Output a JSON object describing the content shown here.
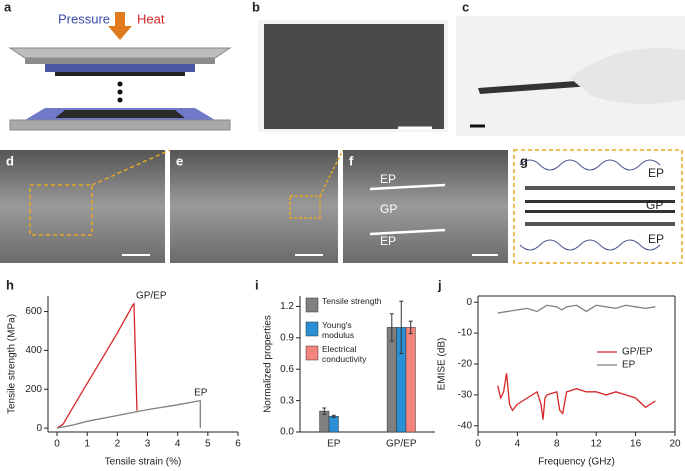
{
  "panel_labels": [
    "a",
    "b",
    "c",
    "d",
    "e",
    "f",
    "g",
    "h",
    "i",
    "j"
  ],
  "diagram_a": {
    "pressure": "Pressure",
    "heat": "Heat"
  },
  "sem_f": [
    "EP",
    "GP",
    "EP"
  ],
  "schematic_g": [
    "EP",
    "GP",
    "EP"
  ],
  "chart_data": [
    {
      "type": "line",
      "xlabel": "Tensile strain (%)",
      "ylabel": "Tensile strength (MPa)",
      "xlim": [
        -0.3,
        6
      ],
      "ylim": [
        -20,
        680
      ],
      "xticks": [
        0,
        1,
        2,
        3,
        4,
        5,
        6
      ],
      "yticks": [
        0,
        200,
        400,
        600
      ],
      "series": [
        {
          "name": "GP/EP",
          "color": "#d62728",
          "x": [
            0,
            0.2,
            0.5,
            1,
            1.5,
            2,
            2.5,
            2.55,
            2.65
          ],
          "values": [
            0,
            20,
            100,
            230,
            360,
            490,
            630,
            640,
            90
          ]
        },
        {
          "name": "EP",
          "color": "#808080",
          "x": [
            0,
            0.5,
            1,
            2,
            3,
            4,
            4.7,
            4.75,
            4.75
          ],
          "values": [
            0,
            15,
            35,
            65,
            95,
            120,
            140,
            140,
            0
          ]
        }
      ]
    },
    {
      "type": "bar",
      "ylabel": "Normalized properties",
      "categories": [
        "EP",
        "GP/EP"
      ],
      "ylim": [
        0,
        1.3
      ],
      "yticks": [
        {
          "value": 0,
          "label": "0.0"
        },
        0.3,
        0.6,
        0.9,
        1.2
      ],
      "legend": "upper left",
      "series": [
        {
          "name": "Tensile strength",
          "color": "#7f7f7f",
          "values": [
            0.2,
            1
          ],
          "errors": [
            0.03,
            0.13
          ]
        },
        {
          "name": "Young's modulus",
          "color": "#2b8fd6",
          "values": [
            0.15,
            1
          ],
          "errors": [
            0.01,
            0.25
          ]
        },
        {
          "name": "Electrical conductivity",
          "color": "#f4837d",
          "values": [
            null,
            1
          ],
          "errors": [
            null,
            0.06
          ]
        }
      ]
    },
    {
      "type": "line",
      "xlabel": "Frequency (GHz)",
      "ylabel": "EMISE (dB)",
      "xlim": [
        0,
        20
      ],
      "ylim": [
        -42,
        2
      ],
      "xticks": [
        0,
        4,
        8,
        12,
        16,
        20
      ],
      "yticks": [
        0,
        -10,
        -20,
        -30,
        -40
      ],
      "legend": "center right",
      "series": [
        {
          "name": "GP/EP",
          "color": "#d62728",
          "x": [
            2,
            2.3,
            2.6,
            2.9,
            3.2,
            3.5,
            4,
            5,
            6,
            6.4,
            6.6,
            6.8,
            7,
            8,
            8.3,
            8.6,
            9,
            10,
            11,
            12,
            13,
            14,
            15,
            16,
            17,
            17.5,
            18
          ],
          "values": [
            -27,
            -31,
            -29,
            -23,
            -33,
            -35,
            -33,
            -31,
            -29,
            -33,
            -38,
            -31,
            -30,
            -29,
            -35,
            -36,
            -29,
            -28,
            -29,
            -29,
            -30,
            -29,
            -30,
            -31,
            -34,
            -33,
            -32
          ]
        },
        {
          "name": "EP",
          "color": "#808080",
          "x": [
            2,
            3,
            4,
            5,
            6,
            7,
            8,
            8.5,
            9,
            10,
            11,
            12,
            13,
            14,
            15,
            16,
            17,
            18
          ],
          "values": [
            -3.5,
            -3,
            -2.5,
            -2,
            -3,
            -1,
            -1.5,
            -2.5,
            -1.5,
            -1,
            -3,
            -1,
            -1.5,
            -2,
            -1,
            -1.5,
            -2,
            -1.5
          ]
        }
      ]
    }
  ]
}
